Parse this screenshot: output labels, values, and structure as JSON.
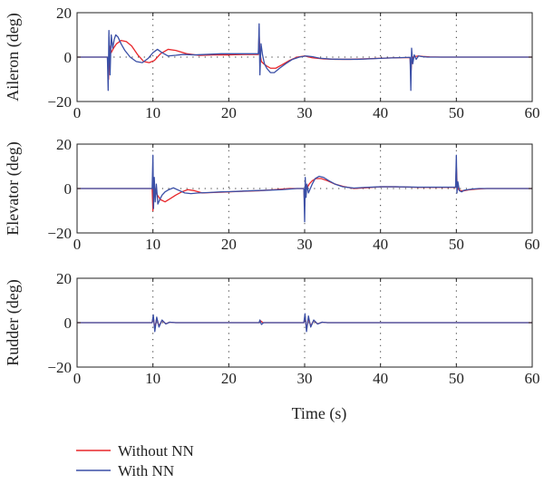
{
  "chart_data": [
    {
      "type": "line",
      "ylabel": "Aileron (deg)",
      "xlim": [
        0,
        60
      ],
      "ylim": [
        -20,
        20
      ],
      "xticks": [
        0,
        10,
        20,
        30,
        40,
        50,
        60
      ],
      "yticks": [
        -20,
        0,
        20
      ],
      "vgrid_dotted": [
        10,
        20,
        30,
        40,
        50
      ],
      "series": [
        {
          "name": "Without NN",
          "color": "#e8262a",
          "x": [
            0,
            4.0,
            4.15,
            4.3,
            4.5,
            4.8,
            5.2,
            5.8,
            6.5,
            7.2,
            8.0,
            8.8,
            9.5,
            10.2,
            11.0,
            12.0,
            13.0,
            14.5,
            16,
            18,
            20,
            22,
            23.9,
            24.0,
            24.1,
            24.3,
            24.6,
            25.0,
            25.5,
            26.2,
            27.0,
            28.0,
            29.0,
            30.0,
            31.0,
            32.5,
            34,
            36,
            38,
            40,
            42,
            43.9,
            44.0,
            44.1,
            44.3,
            44.6,
            45.0,
            45.6,
            46.5,
            48,
            50,
            55,
            60
          ],
          "y": [
            0,
            0,
            -10,
            5,
            2,
            4,
            6,
            7.5,
            7,
            5,
            1,
            -2,
            -2.5,
            -1.5,
            1.5,
            3.5,
            3,
            1.5,
            0.8,
            1.0,
            1.0,
            1.2,
            1.2,
            10,
            2,
            -2,
            -3,
            -4,
            -5,
            -5,
            -3.5,
            -1.5,
            0,
            0.5,
            -0.3,
            -0.8,
            -1.0,
            -1.0,
            -0.8,
            -0.5,
            -0.3,
            -0.2,
            -8,
            -2,
            0,
            0.3,
            0.5,
            0.3,
            0.1,
            0,
            0,
            0,
            0
          ]
        },
        {
          "name": "With NN",
          "color": "#3a4fa6",
          "x": [
            0,
            4.0,
            4.1,
            4.2,
            4.35,
            4.5,
            4.7,
            4.9,
            5.1,
            5.4,
            5.8,
            6.3,
            7.0,
            7.8,
            8.6,
            9.4,
            10.0,
            10.6,
            11.2,
            12.0,
            13.0,
            14.0,
            15.5,
            17,
            19,
            21,
            23,
            23.9,
            24.0,
            24.1,
            24.25,
            24.45,
            24.7,
            25.0,
            25.5,
            26.0,
            26.7,
            27.5,
            28.4,
            29.3,
            30.2,
            31.0,
            32.0,
            33.5,
            35,
            37,
            39,
            41,
            43,
            43.9,
            44.0,
            44.1,
            44.25,
            44.45,
            44.7,
            45.0,
            45.5,
            46.2,
            47,
            49,
            52,
            56,
            60
          ],
          "y": [
            0,
            0,
            -15,
            12,
            -8,
            10,
            4,
            8,
            10,
            9,
            6,
            3,
            0,
            -2,
            -2.5,
            -0.5,
            2,
            3.5,
            2,
            0.5,
            0.8,
            1.2,
            1.0,
            1.2,
            1.5,
            1.5,
            1.5,
            1.5,
            15,
            -8,
            6,
            1,
            -3,
            -5,
            -7,
            -7,
            -5,
            -3,
            -1,
            0,
            0.5,
            0.2,
            -0.5,
            -0.9,
            -1.0,
            -1.0,
            -0.7,
            -0.4,
            -0.2,
            -0.1,
            -15,
            4,
            -3,
            1,
            -1,
            0.5,
            0.2,
            0,
            0,
            0,
            0,
            0,
            0
          ]
        }
      ]
    },
    {
      "type": "line",
      "ylabel": "Elevator (deg)",
      "xlim": [
        0,
        60
      ],
      "ylim": [
        -20,
        20
      ],
      "xticks": [
        0,
        10,
        20,
        30,
        40,
        50,
        60
      ],
      "yticks": [
        -20,
        0,
        20
      ],
      "vgrid_dotted": [
        10,
        20,
        30,
        40,
        50
      ],
      "series": [
        {
          "name": "Without NN",
          "color": "#e8262a",
          "x": [
            0,
            9.9,
            10.0,
            10.1,
            10.3,
            10.6,
            11.0,
            11.6,
            12.3,
            13.0,
            13.8,
            14.6,
            15.5,
            16.5,
            18,
            20,
            22,
            24,
            26,
            28,
            29.9,
            30.0,
            30.1,
            30.3,
            30.6,
            31.0,
            31.5,
            32.2,
            33.0,
            34.0,
            35,
            36.5,
            38,
            40,
            42,
            45,
            48,
            49.9,
            50.0,
            50.1,
            50.3,
            50.6,
            51.0,
            51.6,
            52.5,
            54,
            56,
            60
          ],
          "y": [
            0,
            0,
            -10,
            2,
            -1,
            -3,
            -5,
            -6,
            -4.5,
            -3,
            -1.5,
            -0.5,
            -1,
            -2,
            -1.8,
            -1.5,
            -1.2,
            -1,
            -0.5,
            0,
            0,
            -8,
            2,
            0,
            2,
            3.5,
            4.5,
            4.5,
            3.5,
            2,
            1,
            0,
            0.3,
            0.8,
            0.8,
            0.5,
            0.5,
            0.5,
            10,
            2,
            -0.5,
            -1,
            -1,
            -0.6,
            -0.3,
            0,
            0,
            0
          ]
        },
        {
          "name": "With NN",
          "color": "#3a4fa6",
          "x": [
            0,
            9.9,
            10.0,
            10.08,
            10.18,
            10.3,
            10.45,
            10.65,
            10.9,
            11.2,
            11.6,
            12.1,
            12.7,
            13.4,
            14.2,
            15,
            16,
            17.5,
            19,
            21,
            23,
            25,
            27,
            29,
            29.9,
            30.0,
            30.08,
            30.18,
            30.3,
            30.5,
            30.75,
            31.0,
            31.4,
            31.9,
            32.5,
            33.2,
            34,
            35,
            36.5,
            38,
            40,
            42,
            45,
            48,
            49.9,
            50.0,
            50.08,
            50.2,
            50.4,
            50.7,
            51.0,
            51.5,
            52.2,
            53,
            55,
            57,
            60
          ],
          "y": [
            0,
            0,
            15,
            -9,
            5,
            -6,
            2,
            -7,
            -5,
            -3,
            -1.5,
            -0.5,
            0.3,
            -0.8,
            -2,
            -2.3,
            -2,
            -1.8,
            -1.5,
            -1.3,
            -1,
            -0.8,
            -0.5,
            0,
            0,
            -15,
            5,
            -4,
            2,
            -2,
            0,
            2,
            4.5,
            5.5,
            5,
            3.5,
            2,
            0.8,
            0.2,
            0.5,
            0.8,
            0.8,
            0.6,
            0.6,
            0.6,
            15,
            -2,
            3,
            -1,
            -1.5,
            -0.8,
            -0.5,
            -0.2,
            0,
            0,
            0,
            0
          ]
        }
      ]
    },
    {
      "type": "line",
      "ylabel": "Rudder (deg)",
      "xlabel": "Time (s)",
      "xlim": [
        0,
        60
      ],
      "ylim": [
        -20,
        20
      ],
      "xticks": [
        0,
        10,
        20,
        30,
        40,
        50,
        60
      ],
      "yticks": [
        -20,
        0,
        20
      ],
      "vgrid_dotted": [
        10,
        20,
        30,
        40,
        50
      ],
      "series": [
        {
          "name": "Without NN",
          "color": "#e8262a",
          "x": [
            0,
            9.9,
            10.05,
            10.25,
            10.5,
            10.8,
            11.2,
            11.7,
            12.2,
            13,
            24,
            24.2,
            24.5,
            29.9,
            30.05,
            30.25,
            30.5,
            30.8,
            31.2,
            31.7,
            32.3,
            33,
            60
          ],
          "y": [
            0,
            0,
            2.5,
            -2.5,
            1.8,
            -1.5,
            1,
            -0.5,
            0.2,
            0,
            0,
            0.8,
            0,
            0,
            3,
            -3,
            2,
            -1.5,
            1,
            -0.5,
            0.2,
            0,
            0
          ]
        },
        {
          "name": "With NN",
          "color": "#3a4fa6",
          "x": [
            0,
            9.9,
            10.05,
            10.25,
            10.5,
            10.8,
            11.2,
            11.7,
            12.2,
            13,
            24,
            24.1,
            24.3,
            24.6,
            29.9,
            30.05,
            30.25,
            30.5,
            30.8,
            31.2,
            31.7,
            32.3,
            33,
            60
          ],
          "y": [
            0,
            0,
            3.5,
            -4,
            2.5,
            -2,
            1.2,
            -0.6,
            0.2,
            0,
            0,
            1.2,
            -0.8,
            0,
            0,
            4,
            -4,
            3,
            -2,
            1.2,
            -0.6,
            0.2,
            0,
            0
          ]
        }
      ]
    }
  ],
  "legend": [
    {
      "label": "Without NN",
      "color": "#e8262a"
    },
    {
      "label": "With NN",
      "color": "#3a4fa6"
    }
  ]
}
